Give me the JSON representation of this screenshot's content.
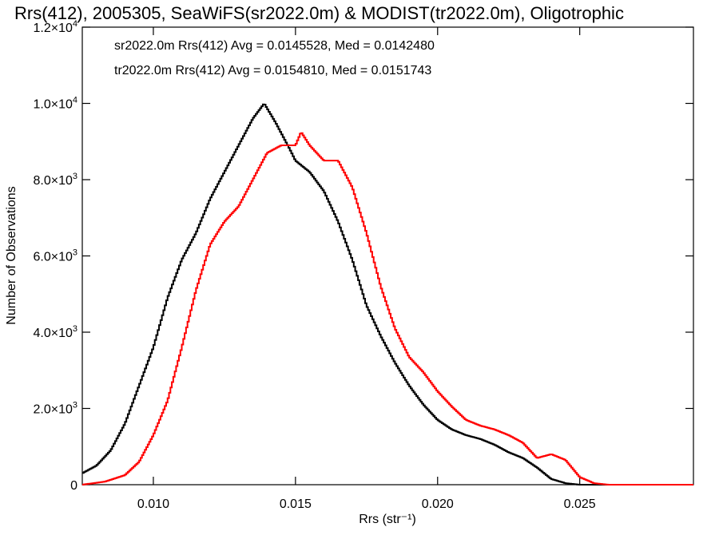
{
  "chart_data": {
    "type": "line",
    "title": "Rrs(412), 2005305, SeaWiFS(sr2022.0m) & MODIST(tr2022.0m), Oligotrophic",
    "xlabel": "Rrs (str⁻¹)",
    "ylabel": "Number of Observations",
    "xlim": [
      0.0075,
      0.029
    ],
    "ylim": [
      0,
      12000
    ],
    "x_ticks": [
      {
        "value": 0.01,
        "label": "0.010"
      },
      {
        "value": 0.015,
        "label": "0.015"
      },
      {
        "value": 0.02,
        "label": "0.020"
      },
      {
        "value": 0.025,
        "label": "0.025"
      }
    ],
    "y_ticks": [
      {
        "value": 0,
        "mantissa": "0",
        "exponent": ""
      },
      {
        "value": 2000,
        "mantissa": "2.0×10",
        "exponent": "3"
      },
      {
        "value": 4000,
        "mantissa": "4.0×10",
        "exponent": "3"
      },
      {
        "value": 6000,
        "mantissa": "6.0×10",
        "exponent": "3"
      },
      {
        "value": 8000,
        "mantissa": "8.0×10",
        "exponent": "3"
      },
      {
        "value": 10000,
        "mantissa": "1.0×10",
        "exponent": "4"
      },
      {
        "value": 12000,
        "mantissa": "1.2×10",
        "exponent": "4"
      }
    ],
    "grid": false,
    "legend_placement": "top-left",
    "series": [
      {
        "name": "sr2022.0m Rrs(412) Avg = 0.0145528, Med = 0.0142480",
        "color": "#000000",
        "style": "step",
        "points": [
          [
            0.0075,
            300
          ],
          [
            0.008,
            500
          ],
          [
            0.0085,
            900
          ],
          [
            0.009,
            1600
          ],
          [
            0.0095,
            2600
          ],
          [
            0.01,
            3600
          ],
          [
            0.0105,
            4900
          ],
          [
            0.011,
            5900
          ],
          [
            0.0115,
            6600
          ],
          [
            0.012,
            7500
          ],
          [
            0.0125,
            8200
          ],
          [
            0.013,
            8900
          ],
          [
            0.0135,
            9600
          ],
          [
            0.0139,
            10000
          ],
          [
            0.0143,
            9500
          ],
          [
            0.0148,
            8800
          ],
          [
            0.015,
            8500
          ],
          [
            0.0155,
            8200
          ],
          [
            0.016,
            7700
          ],
          [
            0.0165,
            6900
          ],
          [
            0.017,
            5900
          ],
          [
            0.0175,
            4700
          ],
          [
            0.018,
            3900
          ],
          [
            0.0185,
            3200
          ],
          [
            0.019,
            2600
          ],
          [
            0.0195,
            2100
          ],
          [
            0.02,
            1700
          ],
          [
            0.0205,
            1450
          ],
          [
            0.021,
            1300
          ],
          [
            0.0215,
            1200
          ],
          [
            0.022,
            1050
          ],
          [
            0.0225,
            850
          ],
          [
            0.023,
            700
          ],
          [
            0.0235,
            450
          ],
          [
            0.024,
            150
          ],
          [
            0.0245,
            40
          ],
          [
            0.025,
            0
          ],
          [
            0.029,
            0
          ]
        ]
      },
      {
        "name": "tr2022.0m Rrs(412) Avg = 0.0154810, Med = 0.0151743",
        "color": "#ff0000",
        "style": "step",
        "points": [
          [
            0.0075,
            0
          ],
          [
            0.0083,
            80
          ],
          [
            0.009,
            250
          ],
          [
            0.0095,
            600
          ],
          [
            0.01,
            1300
          ],
          [
            0.0105,
            2200
          ],
          [
            0.011,
            3600
          ],
          [
            0.0115,
            5100
          ],
          [
            0.012,
            6300
          ],
          [
            0.0125,
            6900
          ],
          [
            0.013,
            7300
          ],
          [
            0.0135,
            8000
          ],
          [
            0.014,
            8700
          ],
          [
            0.0145,
            8900
          ],
          [
            0.015,
            8900
          ],
          [
            0.0152,
            9250
          ],
          [
            0.0155,
            8900
          ],
          [
            0.016,
            8500
          ],
          [
            0.0165,
            8500
          ],
          [
            0.017,
            7800
          ],
          [
            0.0175,
            6600
          ],
          [
            0.018,
            5200
          ],
          [
            0.0185,
            4100
          ],
          [
            0.019,
            3350
          ],
          [
            0.0195,
            2950
          ],
          [
            0.02,
            2450
          ],
          [
            0.0205,
            2050
          ],
          [
            0.021,
            1700
          ],
          [
            0.0215,
            1550
          ],
          [
            0.022,
            1450
          ],
          [
            0.0225,
            1300
          ],
          [
            0.023,
            1100
          ],
          [
            0.0235,
            700
          ],
          [
            0.024,
            800
          ],
          [
            0.0245,
            650
          ],
          [
            0.025,
            200
          ],
          [
            0.0255,
            40
          ],
          [
            0.026,
            0
          ],
          [
            0.029,
            0
          ]
        ]
      }
    ]
  }
}
